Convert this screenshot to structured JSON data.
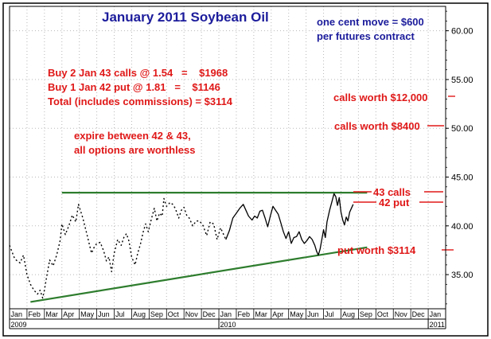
{
  "chart_data": {
    "type": "line",
    "title": "January 2011 Soybean Oil",
    "subtitle_lines": [
      "one cent move = $600",
      "per futures contract"
    ],
    "ylim": [
      31.5,
      62.5
    ],
    "y_ticks": [
      35,
      40,
      45,
      50,
      55,
      60
    ],
    "y_tick_labels": [
      "35.00",
      "40.00",
      "45.00",
      "50.00",
      "55.00",
      "60.00"
    ],
    "x_month_labels": [
      "Jan",
      "Feb",
      "Mar",
      "Apr",
      "May",
      "Jun",
      "Jul",
      "Aug",
      "Sep",
      "Oct",
      "Nov",
      "Dec",
      "Jan",
      "Feb",
      "Mar",
      "Apr",
      "May",
      "Jun",
      "Jul",
      "Aug",
      "Sep",
      "Oct",
      "Nov",
      "Dec",
      "Jan"
    ],
    "x_year_labels": [
      "2009",
      "2010",
      "2011"
    ],
    "trade_lines": [
      "Buy 2 Jan 43 calls @ 1.54   =    $1968",
      "Buy 1 Jan 42 put @ 1.81   =    $1146",
      "Total (includes commissions) = $3114"
    ],
    "expire_lines": [
      "expire between 42 & 43,",
      "all options are worthless"
    ],
    "price_targets": [
      {
        "label": "calls worth $12,000",
        "price": 53.0
      },
      {
        "label": "calls worth $8400",
        "price": 50.0
      },
      {
        "label": "43 calls",
        "price": 43.0
      },
      {
        "label": "42 put",
        "price": 42.0
      },
      {
        "label": "put worth $3114",
        "price": 36.9
      }
    ],
    "resistance_line": {
      "price": 43.4,
      "from_month": 3,
      "to_month": 20.5
    },
    "support_line": {
      "start": {
        "month": 1.2,
        "price": 32.2
      },
      "end": {
        "month": 20.5,
        "price": 37.8
      }
    },
    "series": [
      {
        "name": "Jan 2011 Soybean Oil (dotted, less liquid period)",
        "style": "dotted",
        "points": [
          [
            0.0,
            38.0
          ],
          [
            0.3,
            36.6
          ],
          [
            0.6,
            36.2
          ],
          [
            0.8,
            37.0
          ],
          [
            1.0,
            35.0
          ],
          [
            1.2,
            34.0
          ],
          [
            1.4,
            33.4
          ],
          [
            1.6,
            33.0
          ],
          [
            1.75,
            33.4
          ],
          [
            1.9,
            32.6
          ],
          [
            2.0,
            33.4
          ],
          [
            2.15,
            35.0
          ],
          [
            2.3,
            36.5
          ],
          [
            2.5,
            35.9
          ],
          [
            2.7,
            37.0
          ],
          [
            2.9,
            38.5
          ],
          [
            3.0,
            40.2
          ],
          [
            3.2,
            39.1
          ],
          [
            3.4,
            40.0
          ],
          [
            3.6,
            41.1
          ],
          [
            3.8,
            40.4
          ],
          [
            3.95,
            42.2
          ],
          [
            4.2,
            40.8
          ],
          [
            4.4,
            39.4
          ],
          [
            4.55,
            38.3
          ],
          [
            4.7,
            37.2
          ],
          [
            4.85,
            37.8
          ],
          [
            5.0,
            38.2
          ],
          [
            5.2,
            38.3
          ],
          [
            5.4,
            37.4
          ],
          [
            5.55,
            36.4
          ],
          [
            5.7,
            36.8
          ],
          [
            5.85,
            35.3
          ],
          [
            6.0,
            37.2
          ],
          [
            6.2,
            38.6
          ],
          [
            6.4,
            38.0
          ],
          [
            6.55,
            38.8
          ],
          [
            6.7,
            39.2
          ],
          [
            6.85,
            38.4
          ],
          [
            7.0,
            36.8
          ],
          [
            7.2,
            36.0
          ],
          [
            7.35,
            37.2
          ],
          [
            7.5,
            38.1
          ],
          [
            7.65,
            39.3
          ],
          [
            7.8,
            40.2
          ],
          [
            7.95,
            39.4
          ],
          [
            8.1,
            40.5
          ],
          [
            8.3,
            41.8
          ],
          [
            8.45,
            40.5
          ],
          [
            8.6,
            41.3
          ],
          [
            8.75,
            41.0
          ],
          [
            8.85,
            42.8
          ],
          [
            9.0,
            42.0
          ],
          [
            9.2,
            42.4
          ],
          [
            9.35,
            42.2
          ],
          [
            9.5,
            41.8
          ],
          [
            9.7,
            40.8
          ],
          [
            9.85,
            41.6
          ],
          [
            10.0,
            41.9
          ],
          [
            10.15,
            41.1
          ],
          [
            10.3,
            40.8
          ],
          [
            10.5,
            40.0
          ],
          [
            10.7,
            40.5
          ],
          [
            10.9,
            40.5
          ],
          [
            11.1,
            40.0
          ],
          [
            11.3,
            39.0
          ],
          [
            11.5,
            40.4
          ],
          [
            11.7,
            40.2
          ],
          [
            11.9,
            38.6
          ],
          [
            12.1,
            39.8
          ],
          [
            12.25,
            39.2
          ],
          [
            12.4,
            38.6
          ]
        ]
      },
      {
        "name": "Jan 2011 Soybean Oil (solid)",
        "style": "solid",
        "points": [
          [
            12.4,
            38.6
          ],
          [
            12.6,
            39.5
          ],
          [
            12.8,
            40.8
          ],
          [
            13.0,
            41.3
          ],
          [
            13.2,
            41.8
          ],
          [
            13.4,
            42.2
          ],
          [
            13.55,
            41.6
          ],
          [
            13.7,
            41.0
          ],
          [
            13.9,
            40.6
          ],
          [
            14.05,
            41.0
          ],
          [
            14.2,
            40.8
          ],
          [
            14.35,
            41.5
          ],
          [
            14.5,
            41.6
          ],
          [
            14.65,
            40.8
          ],
          [
            14.8,
            39.9
          ],
          [
            14.95,
            41.0
          ],
          [
            15.1,
            42.0
          ],
          [
            15.25,
            41.6
          ],
          [
            15.4,
            41.2
          ],
          [
            15.55,
            40.3
          ],
          [
            15.7,
            39.4
          ],
          [
            15.85,
            38.7
          ],
          [
            16.0,
            39.4
          ],
          [
            16.15,
            38.2
          ],
          [
            16.3,
            38.8
          ],
          [
            16.45,
            38.9
          ],
          [
            16.6,
            39.4
          ],
          [
            16.75,
            38.6
          ],
          [
            16.9,
            38.2
          ],
          [
            17.05,
            38.5
          ],
          [
            17.2,
            38.9
          ],
          [
            17.35,
            38.6
          ],
          [
            17.5,
            38.0
          ],
          [
            17.6,
            37.4
          ],
          [
            17.7,
            37.0
          ],
          [
            17.8,
            37.6
          ],
          [
            17.9,
            38.6
          ],
          [
            18.0,
            39.6
          ],
          [
            18.1,
            38.8
          ],
          [
            18.2,
            40.4
          ],
          [
            18.35,
            41.6
          ],
          [
            18.5,
            42.6
          ],
          [
            18.6,
            43.3
          ],
          [
            18.7,
            43.0
          ],
          [
            18.8,
            42.1
          ],
          [
            18.9,
            42.9
          ],
          [
            19.0,
            41.4
          ],
          [
            19.1,
            40.6
          ],
          [
            19.2,
            40.1
          ],
          [
            19.3,
            40.9
          ],
          [
            19.4,
            40.5
          ],
          [
            19.5,
            41.4
          ],
          [
            19.6,
            41.8
          ],
          [
            19.7,
            42.2
          ]
        ]
      }
    ],
    "colors": {
      "background": "#ffffff",
      "grid": "#b8b8b8",
      "axis": "#000000",
      "title": "#1c1c9c",
      "annotation": "#e01818",
      "trendline": "#2e7d2e",
      "price": "#000000"
    }
  }
}
